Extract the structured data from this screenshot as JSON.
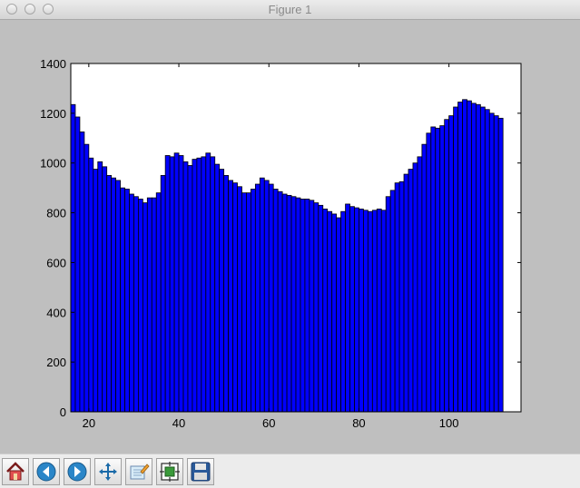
{
  "window": {
    "title": "Figure 1"
  },
  "toolbar": {
    "buttons": [
      {
        "icon": "home-icon"
      },
      {
        "icon": "back-icon"
      },
      {
        "icon": "forward-icon"
      },
      {
        "icon": "pan-icon"
      },
      {
        "icon": "zoom-icon"
      },
      {
        "icon": "subplots-icon"
      },
      {
        "icon": "save-icon"
      }
    ]
  },
  "chart_data": {
    "type": "bar",
    "title": "",
    "xlabel": "",
    "ylabel": "",
    "xlim": [
      16,
      116
    ],
    "ylim": [
      0,
      1400
    ],
    "x_ticks": [
      20,
      40,
      60,
      80,
      100
    ],
    "y_ticks": [
      0,
      200,
      400,
      600,
      800,
      1000,
      1200,
      1400
    ],
    "grid": false,
    "bar_color": "#0000ff",
    "edge_color": "#000000",
    "bin_start": 16,
    "bin_width": 1,
    "values": [
      1235,
      1185,
      1125,
      1075,
      1020,
      975,
      1005,
      985,
      950,
      940,
      930,
      900,
      895,
      875,
      865,
      855,
      840,
      860,
      860,
      880,
      950,
      1030,
      1025,
      1040,
      1030,
      1005,
      990,
      1015,
      1020,
      1025,
      1040,
      1025,
      995,
      975,
      950,
      930,
      920,
      905,
      880,
      880,
      895,
      915,
      940,
      930,
      915,
      895,
      885,
      875,
      870,
      865,
      860,
      855,
      855,
      850,
      840,
      830,
      815,
      805,
      795,
      780,
      805,
      835,
      825,
      820,
      815,
      810,
      805,
      810,
      815,
      810,
      865,
      890,
      920,
      925,
      955,
      975,
      1000,
      1025,
      1075,
      1120,
      1145,
      1140,
      1150,
      1175,
      1190,
      1225,
      1245,
      1255,
      1250,
      1240,
      1235,
      1225,
      1215,
      1200,
      1190,
      1180
    ]
  }
}
